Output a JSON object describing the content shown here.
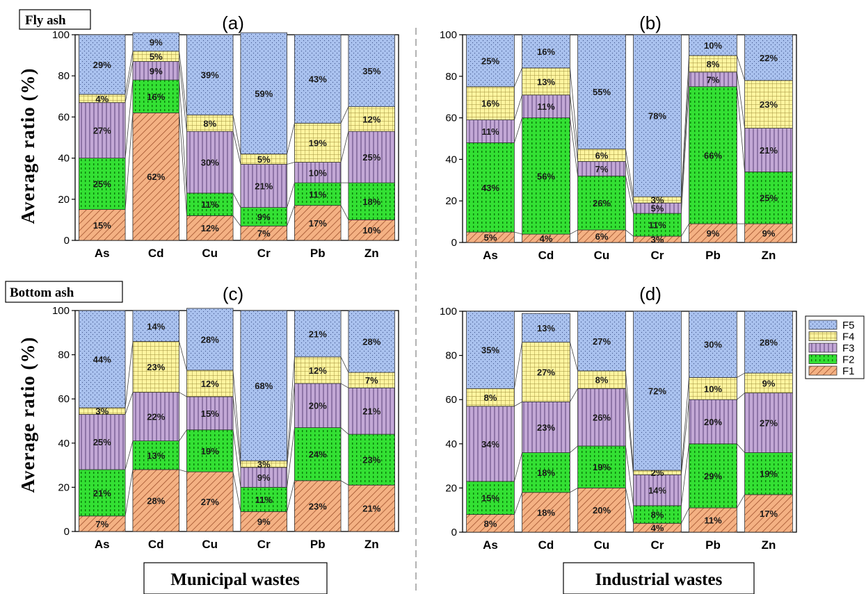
{
  "figure": {
    "fly_ash_label": "Fly ash",
    "bottom_ash_label": "Bottom ash",
    "y_axis_label": "Average  ratio  (%)",
    "municipal_label": "Municipal wastes",
    "industrial_label": "Industrial  wastes"
  },
  "legend": [
    "F5",
    "F4",
    "F3",
    "F2",
    "F1"
  ],
  "colors": {
    "F1": "#f4b183",
    "F2": "#33e033",
    "F3": "#c3a8d6",
    "F4": "#fff5a0",
    "F5": "#a9c1ee"
  },
  "chart_data": [
    {
      "type": "bar",
      "title": "(a)",
      "categories": [
        "As",
        "Cd",
        "Cu",
        "Cr",
        "Pb",
        "Zn"
      ],
      "ylim": [
        0,
        100
      ],
      "yticks": [
        "0",
        "20",
        "40",
        "60",
        "80",
        "100"
      ],
      "series": [
        {
          "name": "F1",
          "values": [
            15,
            62,
            12,
            7,
            17,
            10
          ],
          "labels": [
            "15%",
            "62%",
            "12%",
            "7%",
            "17%",
            "10%"
          ]
        },
        {
          "name": "F2",
          "values": [
            25,
            16,
            11,
            9,
            11,
            18
          ],
          "labels": [
            "25%",
            "16%",
            "11%",
            "9%",
            "11%",
            "18%"
          ]
        },
        {
          "name": "F3",
          "values": [
            27,
            9,
            30,
            21,
            10,
            25
          ],
          "labels": [
            "27%",
            "9%",
            "30%",
            "21%",
            "10%",
            "25%"
          ]
        },
        {
          "name": "F4",
          "values": [
            4,
            5,
            8,
            5,
            19,
            12
          ],
          "labels": [
            "4%",
            "5%",
            "8%",
            "5%",
            "19%",
            "12%"
          ]
        },
        {
          "name": "F5",
          "values": [
            29,
            9,
            39,
            59,
            43,
            35
          ],
          "labels": [
            "29%",
            "9%",
            "39%",
            "59%",
            "43%",
            "35%"
          ]
        }
      ]
    },
    {
      "type": "bar",
      "title": "(b)",
      "categories": [
        "As",
        "Cd",
        "Cu",
        "Cr",
        "Pb",
        "Zn"
      ],
      "ylim": [
        0,
        100
      ],
      "yticks": [
        "0",
        "20",
        "40",
        "60",
        "80",
        "100"
      ],
      "series": [
        {
          "name": "F1",
          "values": [
            5,
            4,
            6,
            3,
            9,
            9
          ],
          "labels": [
            "5%",
            "4%",
            "6%",
            "3%",
            "9%",
            "9%"
          ]
        },
        {
          "name": "F2",
          "values": [
            43,
            56,
            26,
            11,
            66,
            25
          ],
          "labels": [
            "43%",
            "56%",
            "26%",
            "11%",
            "66%",
            "25%"
          ]
        },
        {
          "name": "F3",
          "values": [
            11,
            11,
            7,
            5,
            7,
            21
          ],
          "labels": [
            "11%",
            "11%",
            "7%",
            "5%",
            "7%",
            "21%"
          ]
        },
        {
          "name": "F4",
          "values": [
            16,
            13,
            6,
            3,
            8,
            23
          ],
          "labels": [
            "16%",
            "13%",
            "6%",
            "3%",
            "8%",
            "23%"
          ]
        },
        {
          "name": "F5",
          "values": [
            25,
            16,
            55,
            78,
            10,
            22
          ],
          "labels": [
            "25%",
            "16%",
            "55%",
            "78%",
            "10%",
            "22%"
          ]
        }
      ]
    },
    {
      "type": "bar",
      "title": "(c)",
      "categories": [
        "As",
        "Cd",
        "Cu",
        "Cr",
        "Pb",
        "Zn"
      ],
      "ylim": [
        0,
        100
      ],
      "yticks": [
        "0",
        "20",
        "40",
        "60",
        "80",
        "100"
      ],
      "series": [
        {
          "name": "F1",
          "values": [
            7,
            28,
            27,
            9,
            23,
            21
          ],
          "labels": [
            "7%",
            "28%",
            "27%",
            "9%",
            "23%",
            "21%"
          ]
        },
        {
          "name": "F2",
          "values": [
            21,
            13,
            19,
            11,
            24,
            23
          ],
          "labels": [
            "21%",
            "13%",
            "19%",
            "11%",
            "24%",
            "23%"
          ]
        },
        {
          "name": "F3",
          "values": [
            25,
            22,
            15,
            9,
            20,
            21
          ],
          "labels": [
            "25%",
            "22%",
            "15%",
            "9%",
            "20%",
            "21%"
          ]
        },
        {
          "name": "F4",
          "values": [
            3,
            23,
            12,
            3,
            12,
            7
          ],
          "labels": [
            "3%",
            "23%",
            "12%",
            "3%",
            "12%",
            "7%"
          ]
        },
        {
          "name": "F5",
          "values": [
            44,
            14,
            28,
            68,
            21,
            28
          ],
          "labels": [
            "44%",
            "14%",
            "28%",
            "68%",
            "21%",
            "28%"
          ]
        }
      ]
    },
    {
      "type": "bar",
      "title": "(d)",
      "categories": [
        "As",
        "Cd",
        "Cu",
        "Cr",
        "Pb",
        "Zn"
      ],
      "ylim": [
        0,
        100
      ],
      "yticks": [
        "0",
        "20",
        "40",
        "60",
        "80",
        "100"
      ],
      "series": [
        {
          "name": "F1",
          "values": [
            8,
            18,
            20,
            4,
            11,
            17
          ],
          "labels": [
            "8%",
            "18%",
            "20%",
            "4%",
            "11%",
            "17%"
          ]
        },
        {
          "name": "F2",
          "values": [
            15,
            18,
            19,
            8,
            29,
            19
          ],
          "labels": [
            "15%",
            "18%",
            "19%",
            "8%",
            "29%",
            "19%"
          ]
        },
        {
          "name": "F3",
          "values": [
            34,
            23,
            26,
            14,
            20,
            27
          ],
          "labels": [
            "34%",
            "23%",
            "26%",
            "14%",
            "20%",
            "27%"
          ]
        },
        {
          "name": "F4",
          "values": [
            8,
            27,
            8,
            2,
            10,
            9
          ],
          "labels": [
            "8%",
            "27%",
            "8%",
            "2%",
            "10%",
            "9%"
          ]
        },
        {
          "name": "F5",
          "values": [
            35,
            13,
            27,
            72,
            30,
            28
          ],
          "labels": [
            "35%",
            "13%",
            "27%",
            "72%",
            "30%",
            "28%"
          ]
        }
      ]
    }
  ]
}
